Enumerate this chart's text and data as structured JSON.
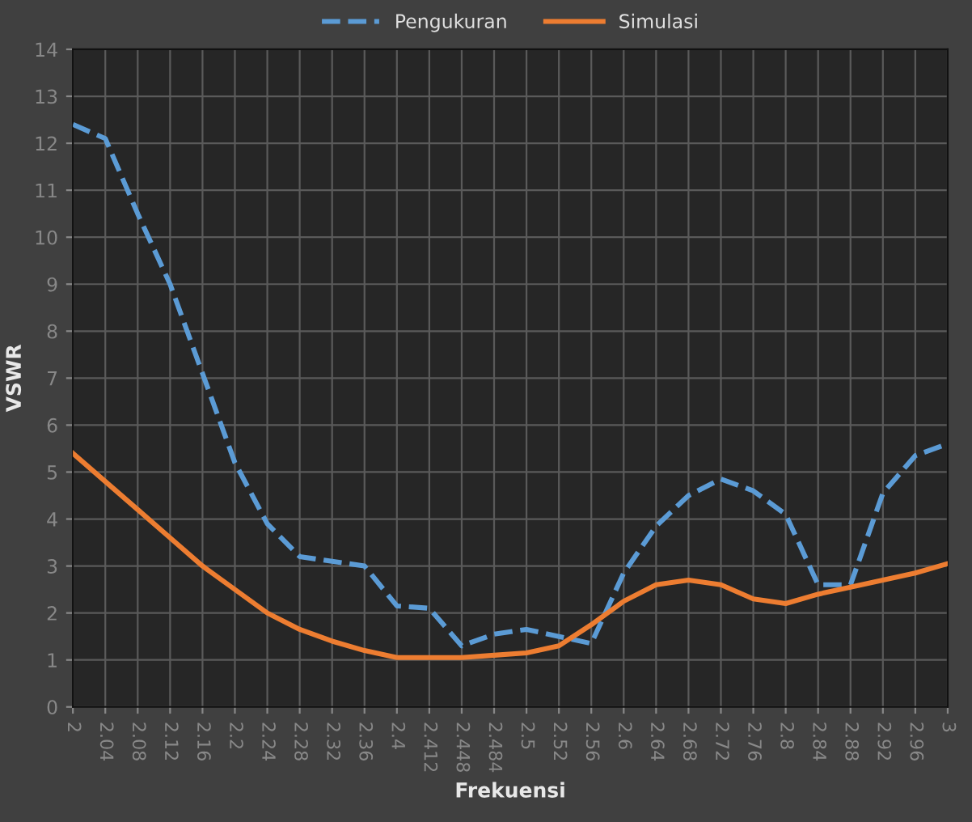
{
  "chart_data": {
    "type": "line",
    "xlabel": "Frekuensi",
    "ylabel": "VSWR",
    "categories": [
      "2",
      "2.04",
      "2.08",
      "2.12",
      "2.16",
      "2.2",
      "2.24",
      "2.28",
      "2.32",
      "2.36",
      "2.4",
      "2.412",
      "2.448",
      "2.484",
      "2.5",
      "2.52",
      "2.56",
      "2.6",
      "2.64",
      "2.68",
      "2.72",
      "2.76",
      "2.8",
      "2.84",
      "2.88",
      "2.92",
      "2.96",
      "3"
    ],
    "series": [
      {
        "name": "Pengukuran",
        "color": "#5b9bd5",
        "line_style": "dashed",
        "values": [
          12.4,
          12.1,
          10.5,
          9.0,
          7.1,
          5.2,
          3.9,
          3.2,
          3.1,
          3.0,
          2.15,
          2.1,
          1.3,
          1.55,
          1.65,
          1.5,
          1.35,
          2.85,
          3.85,
          4.5,
          4.85,
          4.6,
          4.1,
          2.6,
          2.6,
          4.55,
          5.35,
          5.6
        ]
      },
      {
        "name": "Simulasi",
        "color": "#ed7d31",
        "line_style": "solid",
        "values": [
          5.4,
          4.8,
          4.2,
          3.6,
          3.0,
          2.5,
          2.0,
          1.65,
          1.4,
          1.2,
          1.05,
          1.05,
          1.05,
          1.1,
          1.15,
          1.3,
          1.75,
          2.25,
          2.6,
          2.7,
          2.6,
          2.3,
          2.2,
          2.4,
          2.55,
          2.7,
          2.85,
          3.05
        ]
      }
    ],
    "ylim": [
      0,
      14
    ],
    "yticks": [
      0,
      1,
      2,
      3,
      4,
      5,
      6,
      7,
      8,
      9,
      10,
      11,
      12,
      13,
      14
    ],
    "grid": true,
    "legend": "top",
    "marker": "none"
  }
}
